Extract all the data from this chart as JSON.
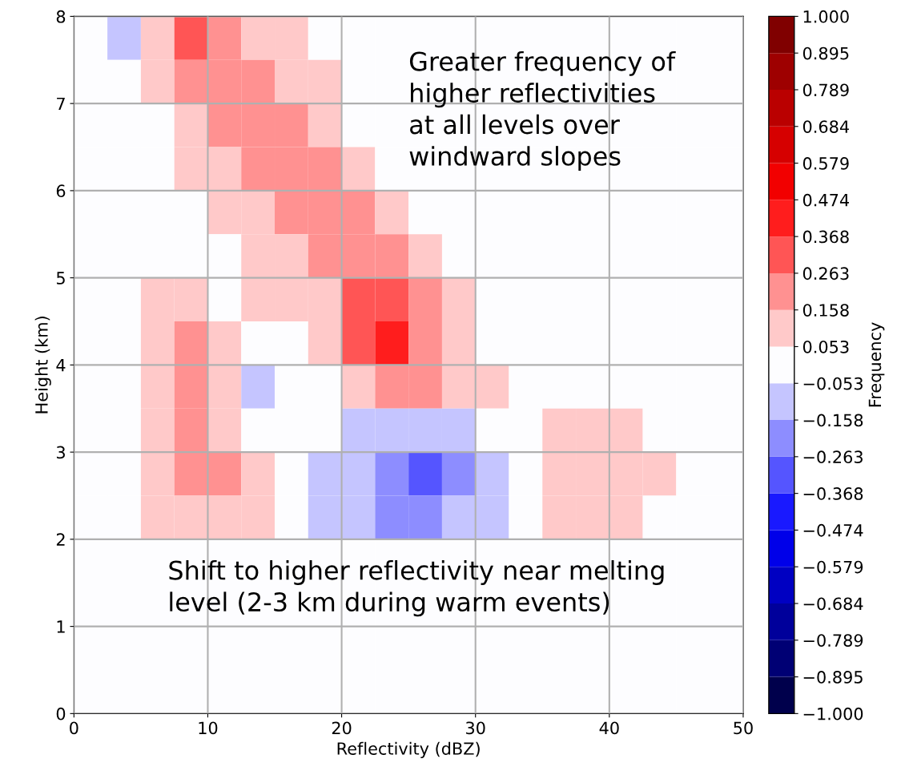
{
  "chart_data": {
    "type": "heatmap",
    "xlabel": "Reflectivity (dBZ)",
    "ylabel": "Height (km)",
    "clabel": "Frequency",
    "x": [
      1.25,
      3.75,
      6.25,
      8.75,
      11.25,
      13.75,
      16.25,
      18.75,
      21.25,
      23.75,
      26.25,
      28.75,
      31.25,
      33.75,
      36.25,
      38.75,
      41.25,
      43.75,
      46.25,
      48.75
    ],
    "y": [
      7.75,
      7.25,
      6.75,
      6.25,
      5.75,
      5.25,
      4.75,
      4.25,
      3.75,
      3.25,
      2.75,
      2.25,
      1.75,
      1.25,
      0.75,
      0.25
    ],
    "xlim": [
      0,
      50
    ],
    "xticks": [
      0,
      10,
      20,
      30,
      40,
      50
    ],
    "ylim": [
      0,
      8
    ],
    "yticks": [
      0,
      1,
      2,
      3,
      4,
      5,
      6,
      7,
      8
    ],
    "grid": true,
    "cells": [
      [
        0,
        -0.1,
        0.1,
        0.3,
        0.2,
        0.1,
        0.1,
        0,
        0,
        0,
        0,
        0,
        0,
        0,
        0,
        0,
        0,
        0,
        0,
        0
      ],
      [
        0,
        0,
        0.1,
        0.2,
        0.2,
        0.2,
        0.1,
        0.1,
        0,
        0,
        0,
        0,
        0,
        0,
        0,
        0,
        0,
        0,
        0,
        0
      ],
      [
        0,
        0,
        0,
        0.1,
        0.2,
        0.2,
        0.2,
        0.1,
        0,
        0,
        0,
        0,
        0,
        0,
        0,
        0,
        0,
        0,
        0,
        0
      ],
      [
        0,
        0,
        0,
        0.1,
        0.1,
        0.2,
        0.2,
        0.2,
        0.1,
        0,
        0,
        0,
        0,
        0,
        0,
        0,
        0,
        0,
        0,
        0
      ],
      [
        0,
        0,
        0,
        0,
        0.1,
        0.1,
        0.2,
        0.2,
        0.2,
        0.1,
        0,
        0,
        0,
        0,
        0,
        0,
        0,
        0,
        0,
        0
      ],
      [
        0,
        0,
        0,
        0,
        0,
        0.1,
        0.1,
        0.2,
        0.2,
        0.2,
        0.1,
        0,
        0,
        0,
        0,
        0,
        0,
        0,
        0,
        0
      ],
      [
        0,
        0,
        0.1,
        0.1,
        0,
        0.1,
        0.1,
        0.1,
        0.3,
        0.3,
        0.2,
        0.1,
        0,
        0,
        0,
        0,
        0,
        0,
        0,
        0
      ],
      [
        0,
        0,
        0.1,
        0.2,
        0.1,
        0,
        0,
        0.1,
        0.3,
        0.4,
        0.2,
        0.1,
        0,
        0,
        0,
        0,
        0,
        0,
        0,
        0
      ],
      [
        0,
        0,
        0.1,
        0.2,
        0.1,
        -0.1,
        0,
        0,
        0.1,
        0.2,
        0.2,
        0.1,
        0.1,
        0,
        0,
        0,
        0,
        0,
        0,
        0
      ],
      [
        0,
        0,
        0.1,
        0.2,
        0.1,
        0,
        0,
        0,
        -0.1,
        -0.1,
        -0.1,
        -0.1,
        0,
        0,
        0.1,
        0.1,
        0.1,
        0,
        0,
        0
      ],
      [
        0,
        0,
        0.1,
        0.2,
        0.2,
        0.1,
        0,
        -0.1,
        -0.1,
        -0.2,
        -0.3,
        -0.2,
        -0.1,
        0,
        0.1,
        0.1,
        0.1,
        0.1,
        0,
        0
      ],
      [
        0,
        0,
        0.1,
        0.1,
        0.1,
        0.1,
        0,
        -0.1,
        -0.1,
        -0.2,
        -0.2,
        -0.1,
        -0.1,
        0,
        0.1,
        0.1,
        0.1,
        0,
        0,
        0
      ],
      [
        0,
        0,
        0,
        0,
        0,
        0,
        0,
        0,
        0,
        0,
        0,
        0,
        0,
        0,
        0,
        0,
        0,
        0,
        0,
        0
      ],
      [
        0,
        0,
        0,
        0,
        0,
        0,
        0,
        0,
        0,
        0,
        0,
        0,
        0,
        0,
        0,
        0,
        0,
        0,
        0,
        0
      ],
      [
        0,
        0,
        0,
        0,
        0,
        0,
        0,
        0,
        0,
        0,
        0,
        0,
        0,
        0,
        0,
        0,
        0,
        0,
        0,
        0
      ],
      [
        0,
        0,
        0,
        0,
        0,
        0,
        0,
        0,
        0,
        0,
        0,
        0,
        0,
        0,
        0,
        0,
        0,
        0,
        0,
        0
      ]
    ],
    "clim": [
      -1,
      1
    ],
    "cticks": [
      {
        "value": -1,
        "label": "−1.000"
      },
      {
        "value": -0.895,
        "label": "−0.895"
      },
      {
        "value": -0.789,
        "label": "−0.789"
      },
      {
        "value": -0.684,
        "label": "−0.684"
      },
      {
        "value": -0.579,
        "label": "−0.579"
      },
      {
        "value": -0.474,
        "label": "−0.474"
      },
      {
        "value": -0.368,
        "label": "−0.368"
      },
      {
        "value": -0.263,
        "label": "−0.263"
      },
      {
        "value": -0.158,
        "label": "−0.158"
      },
      {
        "value": -0.053,
        "label": "−0.053"
      },
      {
        "value": 0.053,
        "label": "0.053"
      },
      {
        "value": 0.158,
        "label": "0.158"
      },
      {
        "value": 0.263,
        "label": "0.263"
      },
      {
        "value": 0.368,
        "label": "0.368"
      },
      {
        "value": 0.474,
        "label": "0.474"
      },
      {
        "value": 0.579,
        "label": "0.579"
      },
      {
        "value": 0.684,
        "label": "0.684"
      },
      {
        "value": 0.789,
        "label": "0.789"
      },
      {
        "value": 0.895,
        "label": "0.895"
      },
      {
        "value": 1,
        "label": "1.000"
      }
    ],
    "annotations": [
      "Greater frequency of\nhigher reflectivities\nat all levels over\nwindward slopes",
      "Shift to higher reflectivity near melting\nlevel (2-3 km during warm events)"
    ]
  }
}
